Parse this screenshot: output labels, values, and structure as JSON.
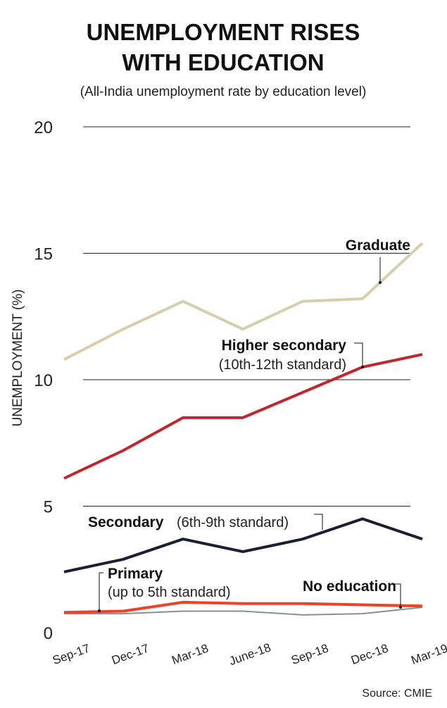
{
  "chart_data": {
    "type": "line",
    "title": [
      "UNEMPLOYMENT RISES",
      "WITH EDUCATION"
    ],
    "subtitle": "(All-India unemployment rate by education level)",
    "xlabel": "",
    "ylabel": "UNEMPLOYMENT (%)",
    "ylim": [
      0,
      20
    ],
    "yticks": [
      "0",
      "5",
      "10",
      "15",
      "20"
    ],
    "grid": true,
    "categories": [
      "Sep-17",
      "Dec-17",
      "Mar-18",
      "June-18",
      "Sep-18",
      "Dec-18",
      "Mar-19"
    ],
    "series": [
      {
        "name": "Graduate",
        "color": "#d6cfac",
        "values": [
          10.8,
          12.0,
          13.1,
          12.0,
          13.1,
          13.2,
          15.4
        ]
      },
      {
        "name": "Higher secondary",
        "note": "(10th-12th standard)",
        "color": "#c0262c",
        "values": [
          6.1,
          7.2,
          8.5,
          8.5,
          9.5,
          10.5,
          11.0
        ]
      },
      {
        "name": "Secondary",
        "note": "(6th-9th standard)",
        "color": "#1b1f33",
        "values": [
          2.4,
          2.9,
          3.7,
          3.2,
          3.7,
          4.5,
          3.7
        ]
      },
      {
        "name": "Primary",
        "note": "(up to 5th standard)",
        "color": "#ef4124",
        "values": [
          0.8,
          0.85,
          1.2,
          1.15,
          1.15,
          1.1,
          1.05
        ]
      },
      {
        "name": "No education",
        "color": "#8e8e8e",
        "values": [
          0.75,
          0.75,
          0.85,
          0.85,
          0.7,
          0.75,
          1.0
        ]
      }
    ],
    "source": "Source: CMIE"
  }
}
